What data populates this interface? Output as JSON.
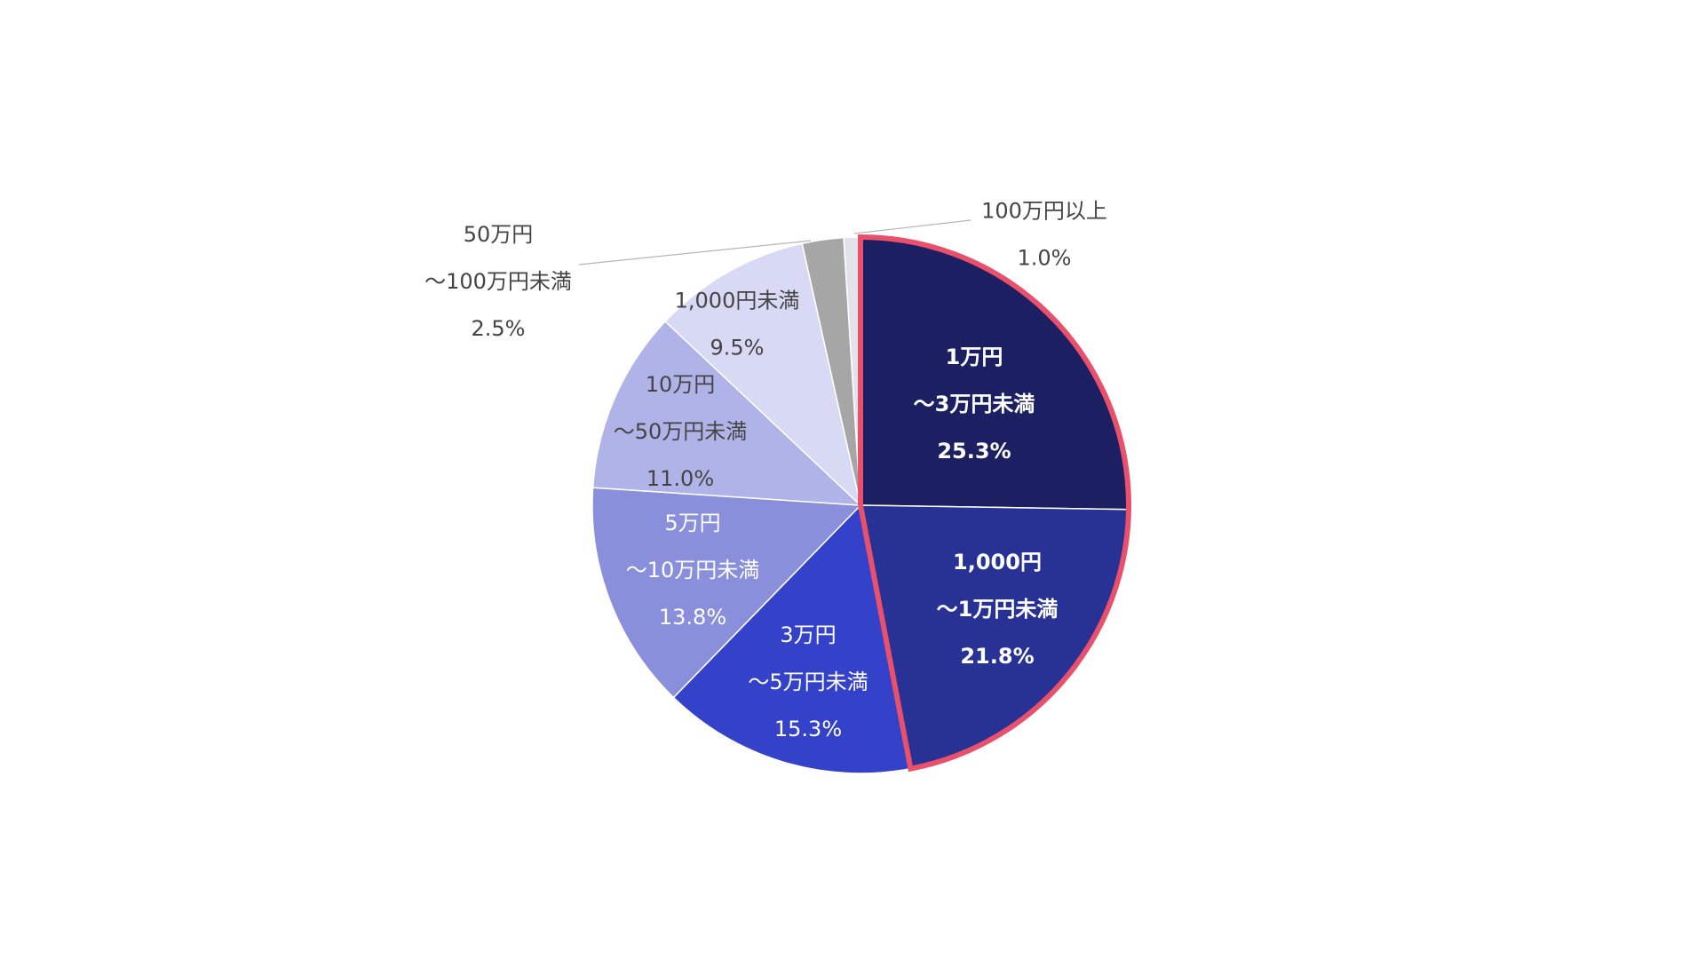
{
  "chart_data": {
    "type": "pie",
    "categories": [
      [
        "1万円",
        "～3万円未満"
      ],
      [
        "1,000円",
        "～1万円未満"
      ],
      [
        "3万円",
        "～5万円未満"
      ],
      [
        "5万円",
        "～10万円未満"
      ],
      [
        "10万円",
        "～50万円未満"
      ],
      [
        "1,000円未満"
      ],
      [
        "50万円",
        "～100万円未満"
      ],
      [
        "100万円以上"
      ]
    ],
    "values": [
      25.3,
      21.8,
      15.3,
      13.8,
      11.0,
      9.5,
      2.5,
      1.0
    ],
    "value_labels": [
      "25.3%",
      "21.8%",
      "15.3%",
      "13.8%",
      "11.0%",
      "9.5%",
      "2.5%",
      "1.0%"
    ],
    "colors": [
      "#1c2062",
      "#283294",
      "#3442c9",
      "#8a8fdc",
      "#b0b3e8",
      "#d8d9f4",
      "#a6a6a6",
      "#e2e2ea"
    ],
    "highlight": [
      0,
      1
    ],
    "highlight_color": "#e8506c"
  }
}
